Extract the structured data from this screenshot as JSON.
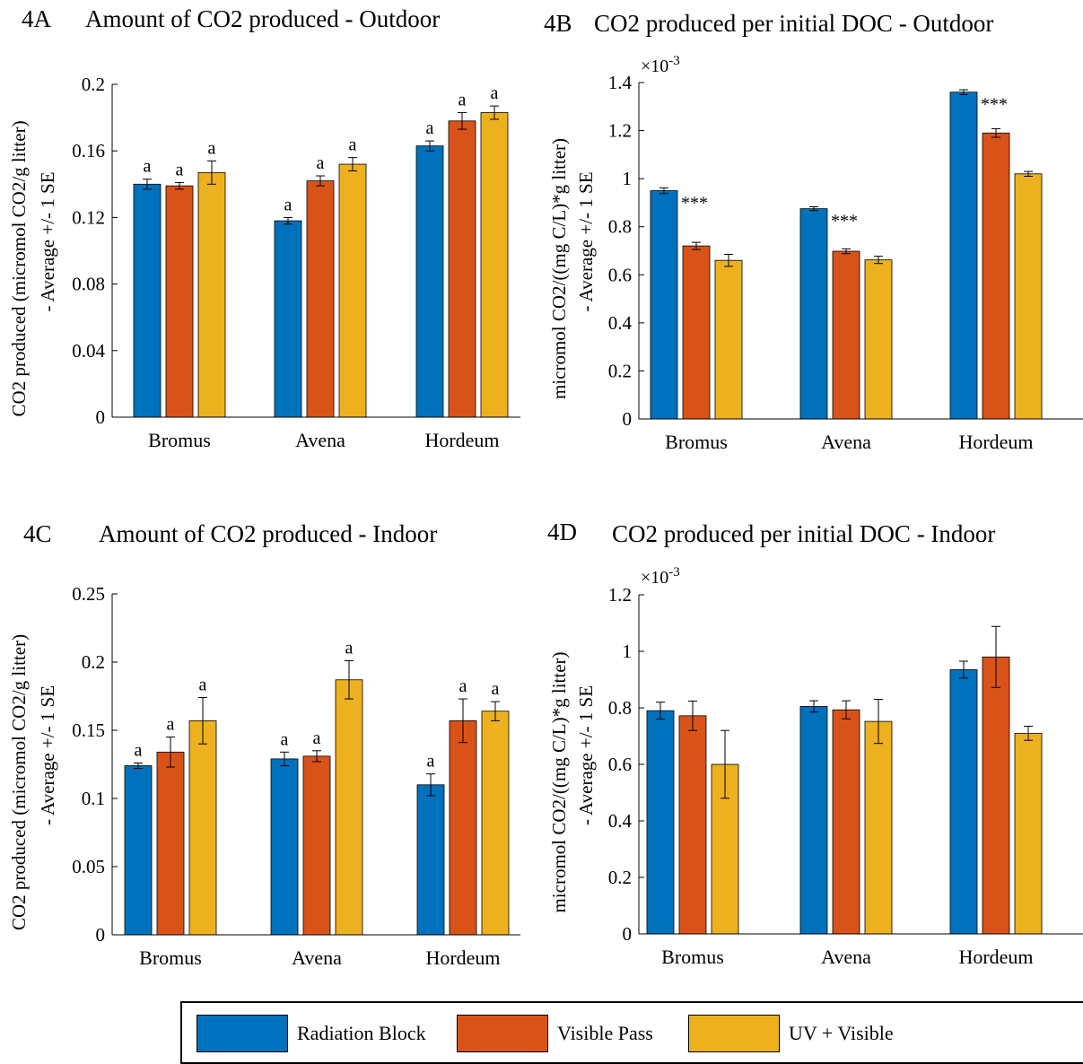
{
  "colors": {
    "series": [
      "#0072BD",
      "#D95319",
      "#EDB120"
    ],
    "frame": "#000000"
  },
  "legend": {
    "items": [
      "Radiation Block",
      "Visible Pass",
      "UV + Visible"
    ]
  },
  "panels": [
    {
      "tag": "4A",
      "title": "Amount of CO2 produced - Outdoor",
      "ylabel_line1": "CO2 produced (micromol CO2/g litter)",
      "ylabel_line2": "- Average +/- 1 SE",
      "exponent": ""
    },
    {
      "tag": "4B",
      "title": "CO2 produced per initial DOC - Outdoor",
      "ylabel_line1": "micromol CO2/((mg C/L)*g litter)",
      "ylabel_line2": "- Average +/- 1 SE",
      "exponent": "-3"
    },
    {
      "tag": "4C",
      "title": "Amount of CO2 produced - Indoor",
      "ylabel_line1": "CO2 produced (micromol CO2/g litter)",
      "ylabel_line2": "- Average +/- 1 SE",
      "exponent": ""
    },
    {
      "tag": "4D",
      "title": "CO2 produced per initial DOC - Indoor",
      "ylabel_line1": "micromol CO2/((mg C/L)*g litter)",
      "ylabel_line2": "- Average +/- 1 SE",
      "exponent": "-3"
    }
  ],
  "chart_data": [
    {
      "type": "bar",
      "title": "Amount of CO2 produced - Outdoor",
      "ylabel": "CO2 produced (micromol CO2/g litter) - Average +/- 1 SE",
      "categories": [
        "Bromus",
        "Avena",
        "Hordeum"
      ],
      "ylim": [
        0,
        0.2
      ],
      "yticks": [
        0,
        0.04,
        0.08,
        0.12,
        0.16,
        0.2
      ],
      "ytick_labels": [
        "0",
        "0.04",
        "0.08",
        "0.12",
        "0.16",
        "0.2"
      ],
      "series": [
        {
          "name": "Radiation Block",
          "values": [
            0.14,
            0.118,
            0.163
          ],
          "errors": [
            0.003,
            0.002,
            0.003
          ],
          "labels": [
            "a",
            "a",
            "a"
          ]
        },
        {
          "name": "Visible Pass",
          "values": [
            0.139,
            0.142,
            0.178
          ],
          "errors": [
            0.002,
            0.003,
            0.005
          ],
          "labels": [
            "a",
            "a",
            "a"
          ]
        },
        {
          "name": "UV + Visible",
          "values": [
            0.147,
            0.152,
            0.183
          ],
          "errors": [
            0.007,
            0.004,
            0.004
          ],
          "labels": [
            "a",
            "a",
            "a"
          ]
        }
      ]
    },
    {
      "type": "bar",
      "title": "CO2 produced per initial DOC - Outdoor",
      "ylabel": "micromol CO2/((mg C/L)*g litter) - Average +/- 1 SE",
      "categories": [
        "Bromus",
        "Avena",
        "Hordeum"
      ],
      "ylim": [
        0,
        0.0014
      ],
      "yticks": [
        0,
        0.0002,
        0.0004,
        0.0006,
        0.0008,
        0.001,
        0.0012,
        0.0014
      ],
      "ytick_labels": [
        "0",
        "0.2",
        "0.4",
        "0.6",
        "0.8",
        "1",
        "1.2",
        "1.4"
      ],
      "series": [
        {
          "name": "Radiation Block",
          "values": [
            0.00095,
            0.000875,
            0.00136
          ],
          "errors": [
            1.2e-05,
            8e-06,
            1e-05
          ],
          "labels": [
            "***",
            "***",
            "***"
          ]
        },
        {
          "name": "Visible Pass",
          "values": [
            0.00072,
            0.000698,
            0.00119
          ],
          "errors": [
            1.5e-05,
            1e-05,
            1.8e-05
          ],
          "labels": [
            "",
            "",
            ""
          ]
        },
        {
          "name": "UV + Visible",
          "values": [
            0.00066,
            0.000662,
            0.00102
          ],
          "errors": [
            2.5e-05,
            1.5e-05,
            1e-05
          ],
          "labels": [
            "",
            "",
            ""
          ]
        }
      ]
    },
    {
      "type": "bar",
      "title": "Amount of CO2 produced - Indoor",
      "ylabel": "CO2 produced (micromol CO2/g litter) - Average +/- 1 SE",
      "categories": [
        "Bromus",
        "Avena",
        "Hordeum"
      ],
      "ylim": [
        0,
        0.25
      ],
      "yticks": [
        0,
        0.05,
        0.1,
        0.15,
        0.2,
        0.25
      ],
      "ytick_labels": [
        "0",
        "0.05",
        "0.1",
        "0.15",
        "0.2",
        "0.25"
      ],
      "series": [
        {
          "name": "Radiation Block",
          "values": [
            0.124,
            0.129,
            0.11
          ],
          "errors": [
            0.002,
            0.005,
            0.008
          ],
          "labels": [
            "a",
            "a",
            "a"
          ]
        },
        {
          "name": "Visible Pass",
          "values": [
            0.134,
            0.131,
            0.157
          ],
          "errors": [
            0.011,
            0.004,
            0.016
          ],
          "labels": [
            "a",
            "a",
            "a"
          ]
        },
        {
          "name": "UV + Visible",
          "values": [
            0.157,
            0.187,
            0.164
          ],
          "errors": [
            0.017,
            0.014,
            0.007
          ],
          "labels": [
            "a",
            "a",
            "a"
          ]
        }
      ]
    },
    {
      "type": "bar",
      "title": "CO2 produced per initial DOC - Indoor",
      "ylabel": "micromol CO2/((mg C/L)*g litter) - Average +/- 1 SE",
      "categories": [
        "Bromus",
        "Avena",
        "Hordeum"
      ],
      "ylim": [
        0,
        0.0012
      ],
      "yticks": [
        0,
        0.0002,
        0.0004,
        0.0006,
        0.0008,
        0.001,
        0.0012
      ],
      "ytick_labels": [
        "0",
        "0.2",
        "0.4",
        "0.6",
        "0.8",
        "1",
        "1.2"
      ],
      "series": [
        {
          "name": "Radiation Block",
          "values": [
            0.00079,
            0.000805,
            0.000935
          ],
          "errors": [
            3e-05,
            2e-05,
            3e-05
          ],
          "labels": [
            "",
            "",
            ""
          ]
        },
        {
          "name": "Visible Pass",
          "values": [
            0.000772,
            0.000793,
            0.00098
          ],
          "errors": [
            5.2e-05,
            3.2e-05,
            0.000108
          ],
          "labels": [
            "",
            "",
            ""
          ]
        },
        {
          "name": "UV + Visible",
          "values": [
            0.0006,
            0.000752,
            0.00071
          ],
          "errors": [
            0.00012,
            7.8e-05,
            2.5e-05
          ],
          "labels": [
            "",
            "",
            ""
          ]
        }
      ]
    }
  ]
}
